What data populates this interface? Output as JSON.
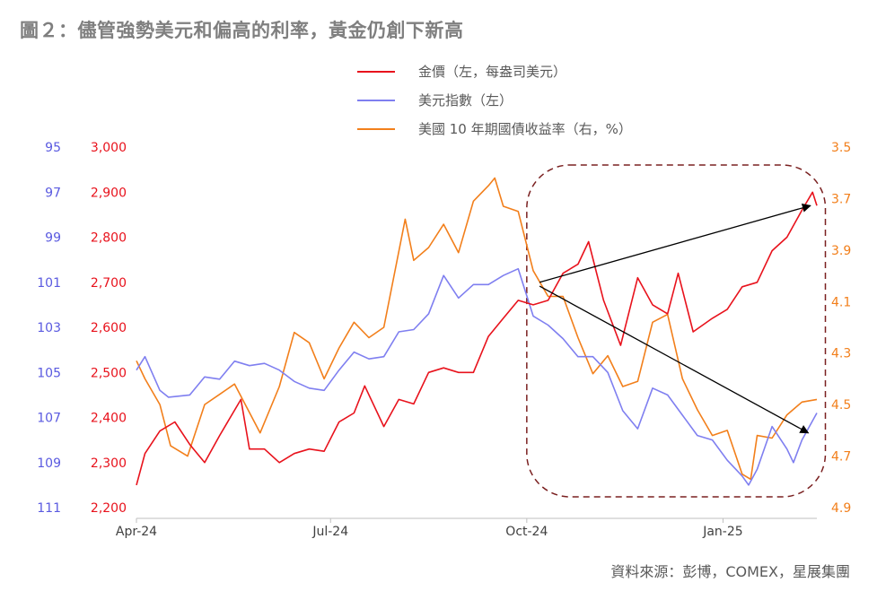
{
  "title": "圖２：儘管強勢美元和偏高的利率，黃金仍創下新高",
  "source": "資料來源：彭博，COMEX，星展集團",
  "colors": {
    "gold": "#e8121c",
    "usd": "#7f7ff0",
    "yield": "#f27f1b",
    "usd_axis": "#5a5ae0",
    "gold_axis": "#e8121c",
    "yield_axis": "#f27f1b",
    "box": "#7a2020",
    "arrow": "#000000"
  },
  "chart_data": {
    "type": "line",
    "x_ticks": [
      "Apr-24",
      "Jul-24",
      "Oct-24",
      "Jan-25"
    ],
    "x_range": [
      "2024-04-01",
      "2025-02-14"
    ],
    "axes": {
      "usd_index": {
        "side": "left-outer",
        "ticks": [
          "95",
          "97",
          "99",
          "101",
          "103",
          "105",
          "107",
          "109",
          "111"
        ],
        "range": [
          95,
          111
        ],
        "inverted": true
      },
      "gold": {
        "side": "left-inner",
        "ticks": [
          "3,000",
          "2,900",
          "2,800",
          "2,700",
          "2,600",
          "2,500",
          "2,400",
          "2,300",
          "2,200"
        ],
        "range": [
          2200,
          3000
        ]
      },
      "us10y": {
        "side": "right",
        "ticks": [
          "3.5",
          "3.7",
          "3.9",
          "4.1",
          "4.3",
          "4.5",
          "4.7",
          "4.9"
        ],
        "range": [
          3.5,
          4.9
        ],
        "inverted": true
      }
    },
    "legend": [
      "金價（左，每盎司美元）",
      "美元指數（左）",
      "美國 10 年期國債收益率（右，%）"
    ],
    "series": [
      {
        "name": "金價（左，每盎司美元）",
        "axis": "gold",
        "points": [
          [
            "2024-04-01",
            2250
          ],
          [
            "2024-04-05",
            2320
          ],
          [
            "2024-04-12",
            2370
          ],
          [
            "2024-04-19",
            2390
          ],
          [
            "2024-04-26",
            2340
          ],
          [
            "2024-05-03",
            2300
          ],
          [
            "2024-05-10",
            2360
          ],
          [
            "2024-05-20",
            2440
          ],
          [
            "2024-05-24",
            2330
          ],
          [
            "2024-05-31",
            2330
          ],
          [
            "2024-06-07",
            2300
          ],
          [
            "2024-06-14",
            2320
          ],
          [
            "2024-06-21",
            2330
          ],
          [
            "2024-06-28",
            2325
          ],
          [
            "2024-07-05",
            2390
          ],
          [
            "2024-07-12",
            2410
          ],
          [
            "2024-07-17",
            2470
          ],
          [
            "2024-07-26",
            2380
          ],
          [
            "2024-08-02",
            2440
          ],
          [
            "2024-08-09",
            2430
          ],
          [
            "2024-08-16",
            2500
          ],
          [
            "2024-08-23",
            2510
          ],
          [
            "2024-08-30",
            2500
          ],
          [
            "2024-09-06",
            2500
          ],
          [
            "2024-09-13",
            2580
          ],
          [
            "2024-09-20",
            2620
          ],
          [
            "2024-09-27",
            2660
          ],
          [
            "2024-10-04",
            2650
          ],
          [
            "2024-10-11",
            2660
          ],
          [
            "2024-10-18",
            2720
          ],
          [
            "2024-10-25",
            2740
          ],
          [
            "2024-10-30",
            2790
          ],
          [
            "2024-11-06",
            2660
          ],
          [
            "2024-11-14",
            2560
          ],
          [
            "2024-11-22",
            2710
          ],
          [
            "2024-11-29",
            2650
          ],
          [
            "2024-12-06",
            2630
          ],
          [
            "2024-12-11",
            2720
          ],
          [
            "2024-12-18",
            2590
          ],
          [
            "2024-12-27",
            2620
          ],
          [
            "2025-01-03",
            2640
          ],
          [
            "2025-01-10",
            2690
          ],
          [
            "2025-01-17",
            2700
          ],
          [
            "2025-01-24",
            2770
          ],
          [
            "2025-01-31",
            2800
          ],
          [
            "2025-02-07",
            2860
          ],
          [
            "2025-02-12",
            2900
          ],
          [
            "2025-02-14",
            2870
          ]
        ]
      },
      {
        "name": "美元指數（左）",
        "axis": "usd_index",
        "points": [
          [
            "2024-04-01",
            104.9
          ],
          [
            "2024-04-05",
            104.3
          ],
          [
            "2024-04-12",
            105.8
          ],
          [
            "2024-04-16",
            106.1
          ],
          [
            "2024-04-26",
            106.0
          ],
          [
            "2024-05-03",
            105.2
          ],
          [
            "2024-05-10",
            105.3
          ],
          [
            "2024-05-17",
            104.5
          ],
          [
            "2024-05-24",
            104.7
          ],
          [
            "2024-05-31",
            104.6
          ],
          [
            "2024-06-07",
            104.9
          ],
          [
            "2024-06-14",
            105.4
          ],
          [
            "2024-06-21",
            105.7
          ],
          [
            "2024-06-28",
            105.8
          ],
          [
            "2024-07-05",
            104.9
          ],
          [
            "2024-07-12",
            104.1
          ],
          [
            "2024-07-19",
            104.4
          ],
          [
            "2024-07-26",
            104.3
          ],
          [
            "2024-08-02",
            103.2
          ],
          [
            "2024-08-09",
            103.1
          ],
          [
            "2024-08-16",
            102.4
          ],
          [
            "2024-08-23",
            100.7
          ],
          [
            "2024-08-30",
            101.7
          ],
          [
            "2024-09-06",
            101.1
          ],
          [
            "2024-09-13",
            101.1
          ],
          [
            "2024-09-20",
            100.7
          ],
          [
            "2024-09-27",
            100.4
          ],
          [
            "2024-10-04",
            102.5
          ],
          [
            "2024-10-11",
            102.9
          ],
          [
            "2024-10-18",
            103.5
          ],
          [
            "2024-10-25",
            104.3
          ],
          [
            "2024-11-01",
            104.3
          ],
          [
            "2024-11-08",
            105.0
          ],
          [
            "2024-11-15",
            106.7
          ],
          [
            "2024-11-22",
            107.5
          ],
          [
            "2024-11-29",
            105.7
          ],
          [
            "2024-12-06",
            106.0
          ],
          [
            "2024-12-13",
            106.9
          ],
          [
            "2024-12-20",
            107.8
          ],
          [
            "2024-12-27",
            108.0
          ],
          [
            "2025-01-03",
            108.9
          ],
          [
            "2025-01-10",
            109.6
          ],
          [
            "2025-01-13",
            110.0
          ],
          [
            "2025-01-17",
            109.3
          ],
          [
            "2025-01-24",
            107.4
          ],
          [
            "2025-01-31",
            108.4
          ],
          [
            "2025-02-03",
            109.0
          ],
          [
            "2025-02-07",
            108.0
          ],
          [
            "2025-02-14",
            106.8
          ]
        ]
      },
      {
        "name": "美國 10 年期國債收益率（右，%）",
        "axis": "us10y",
        "points": [
          [
            "2024-04-01",
            4.33
          ],
          [
            "2024-04-05",
            4.4
          ],
          [
            "2024-04-12",
            4.5
          ],
          [
            "2024-04-17",
            4.66
          ],
          [
            "2024-04-25",
            4.7
          ],
          [
            "2024-05-03",
            4.5
          ],
          [
            "2024-05-10",
            4.46
          ],
          [
            "2024-05-17",
            4.42
          ],
          [
            "2024-05-29",
            4.61
          ],
          [
            "2024-06-07",
            4.43
          ],
          [
            "2024-06-14",
            4.22
          ],
          [
            "2024-06-21",
            4.26
          ],
          [
            "2024-06-28",
            4.4
          ],
          [
            "2024-07-05",
            4.28
          ],
          [
            "2024-07-12",
            4.18
          ],
          [
            "2024-07-19",
            4.24
          ],
          [
            "2024-07-26",
            4.2
          ],
          [
            "2024-08-05",
            3.78
          ],
          [
            "2024-08-09",
            3.94
          ],
          [
            "2024-08-16",
            3.89
          ],
          [
            "2024-08-23",
            3.8
          ],
          [
            "2024-08-30",
            3.91
          ],
          [
            "2024-09-06",
            3.71
          ],
          [
            "2024-09-13",
            3.65
          ],
          [
            "2024-09-16",
            3.62
          ],
          [
            "2024-09-20",
            3.73
          ],
          [
            "2024-09-27",
            3.75
          ],
          [
            "2024-10-04",
            3.98
          ],
          [
            "2024-10-11",
            4.08
          ],
          [
            "2024-10-18",
            4.08
          ],
          [
            "2024-10-25",
            4.24
          ],
          [
            "2024-11-01",
            4.38
          ],
          [
            "2024-11-08",
            4.31
          ],
          [
            "2024-11-15",
            4.43
          ],
          [
            "2024-11-22",
            4.41
          ],
          [
            "2024-11-29",
            4.18
          ],
          [
            "2024-12-06",
            4.15
          ],
          [
            "2024-12-13",
            4.4
          ],
          [
            "2024-12-20",
            4.52
          ],
          [
            "2024-12-27",
            4.62
          ],
          [
            "2025-01-03",
            4.6
          ],
          [
            "2025-01-10",
            4.77
          ],
          [
            "2025-01-14",
            4.79
          ],
          [
            "2025-01-17",
            4.62
          ],
          [
            "2025-01-24",
            4.63
          ],
          [
            "2025-01-31",
            4.54
          ],
          [
            "2025-02-07",
            4.49
          ],
          [
            "2025-02-14",
            4.48
          ]
        ]
      }
    ],
    "annotations": {
      "highlight_box": {
        "from": "2024-10-01",
        "to": "2025-02-18",
        "style": "dashed rounded rectangle"
      },
      "arrows": [
        {
          "desc": "gold rising",
          "from": [
            "2024-10-07",
            2700
          ],
          "to": [
            "2025-02-11",
            2870
          ]
        },
        {
          "desc": "yield falling (axis inverted)",
          "from": [
            "2024-10-07",
            4.04
          ],
          "to": [
            "2025-02-10",
            4.61
          ]
        }
      ]
    }
  }
}
